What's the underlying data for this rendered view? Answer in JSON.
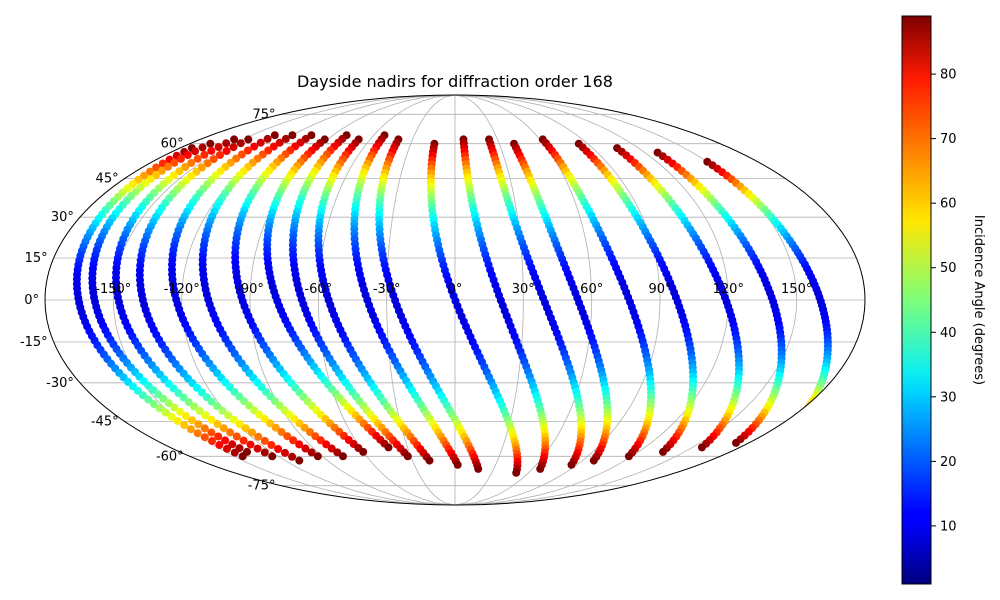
{
  "chart_data": {
    "type": "scatter",
    "projection": "mollweide",
    "title": "Dayside nadirs for diffraction order 168",
    "x_ticks": [
      "-150°",
      "-120°",
      "-90°",
      "-60°",
      "-30°",
      "0°",
      "30°",
      "60°",
      "90°",
      "120°",
      "150°"
    ],
    "y_ticks": [
      "75°",
      "60°",
      "45°",
      "30°",
      "15°",
      "0°",
      "-15°",
      "-30°",
      "-45°",
      "-60°",
      "-75°"
    ],
    "x_tick_values": [
      -150,
      -120,
      -90,
      -60,
      -30,
      0,
      30,
      60,
      90,
      120,
      150
    ],
    "y_tick_values": [
      75,
      60,
      45,
      30,
      15,
      0,
      -15,
      -30,
      -45,
      -60,
      -75
    ],
    "grid": true,
    "colormap": "jet",
    "colorbar": {
      "label": "Incidence Angle (degrees)",
      "range": [
        1,
        89
      ],
      "ticks": [
        "10",
        "20",
        "30",
        "40",
        "50",
        "60",
        "70",
        "80"
      ],
      "tick_values": [
        10,
        20,
        30,
        40,
        50,
        60,
        70,
        80
      ]
    },
    "series": [
      {
        "lon0": -172,
        "lat0": 58,
        "lat1": -60,
        "drift": 28
      },
      {
        "lon0": -166,
        "lat0": 60,
        "lat1": -58,
        "drift": 30
      },
      {
        "lon0": -156,
        "lat0": 62,
        "lat1": -60,
        "drift": 32
      },
      {
        "lon0": -146,
        "lat0": 62,
        "lat1": -62,
        "drift": 36
      },
      {
        "lon0": -133,
        "lat0": 64,
        "lat1": -60,
        "drift": 40
      },
      {
        "lon0": -120,
        "lat0": 64,
        "lat1": -60,
        "drift": 44
      },
      {
        "lon0": -106,
        "lat0": 64,
        "lat1": -58,
        "drift": 46
      },
      {
        "lon0": -92,
        "lat0": 62,
        "lat1": -56,
        "drift": 50
      },
      {
        "lon0": -80,
        "lat0": 64,
        "lat1": -60,
        "drift": 48
      },
      {
        "lon0": -68,
        "lat0": 62,
        "lat1": -62,
        "drift": 50
      },
      {
        "lon0": -52,
        "lat0": 64,
        "lat1": -64,
        "drift": 54
      },
      {
        "lon0": -40,
        "lat0": 62,
        "lat1": -66,
        "drift": 58
      },
      {
        "lon0": -14,
        "lat0": 60,
        "lat1": -68,
        "drift": 64
      },
      {
        "lon0": 6,
        "lat0": 62,
        "lat1": -66,
        "drift": 60
      },
      {
        "lon0": 24,
        "lat0": 62,
        "lat1": -64,
        "drift": 62
      },
      {
        "lon0": 40,
        "lat0": 60,
        "lat1": -62,
        "drift": 58
      },
      {
        "lon0": 62,
        "lat0": 62,
        "lat1": -60,
        "drift": 56
      },
      {
        "lon0": 84,
        "lat0": 60,
        "lat1": -58,
        "drift": 52
      },
      {
        "lon0": 106,
        "lat0": 58,
        "lat1": -56,
        "drift": 50
      },
      {
        "lon0": 128,
        "lat0": 56,
        "lat1": -54,
        "drift": 44
      },
      {
        "lon0": 150,
        "lat0": 52,
        "lat1": -50,
        "drift": 40
      }
    ]
  }
}
